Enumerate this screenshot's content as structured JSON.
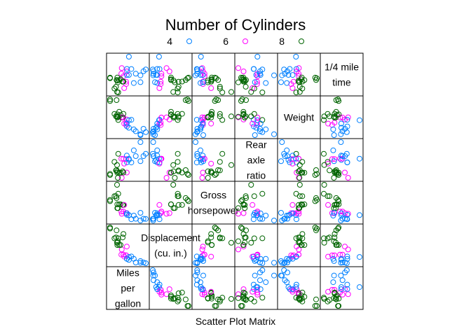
{
  "chart_data": {
    "type": "scatter",
    "title": "Number of Cylinders",
    "xlabel": "Scatter Plot Matrix",
    "legend": {
      "placement": "top",
      "entries": [
        {
          "name": "4",
          "color": "#0080ff"
        },
        {
          "name": "6",
          "color": "#ff00ff"
        },
        {
          "name": "8",
          "color": "#006400"
        }
      ]
    },
    "variables": [
      {
        "key": "mpg",
        "label_lines": [
          "Miles",
          "per",
          "gallon"
        ]
      },
      {
        "key": "disp",
        "label_lines": [
          "Displacement",
          "(cu. in.)"
        ]
      },
      {
        "key": "hp",
        "label_lines": [
          "Gross",
          "horsepower"
        ]
      },
      {
        "key": "drat",
        "label_lines": [
          "Rear",
          "axle",
          "ratio"
        ]
      },
      {
        "key": "wt",
        "label_lines": [
          "Weight"
        ]
      },
      {
        "key": "qsec",
        "label_lines": [
          "1/4 mile",
          "time"
        ]
      }
    ],
    "grid": false,
    "points": [
      {
        "cyl": "6",
        "mpg": 21.0,
        "disp": 160.0,
        "hp": 110,
        "drat": 3.9,
        "wt": 2.62,
        "qsec": 16.46
      },
      {
        "cyl": "6",
        "mpg": 21.0,
        "disp": 160.0,
        "hp": 110,
        "drat": 3.9,
        "wt": 2.875,
        "qsec": 17.02
      },
      {
        "cyl": "4",
        "mpg": 22.8,
        "disp": 108.0,
        "hp": 93,
        "drat": 3.85,
        "wt": 2.32,
        "qsec": 18.61
      },
      {
        "cyl": "6",
        "mpg": 21.4,
        "disp": 258.0,
        "hp": 110,
        "drat": 3.08,
        "wt": 3.215,
        "qsec": 19.44
      },
      {
        "cyl": "8",
        "mpg": 18.7,
        "disp": 360.0,
        "hp": 175,
        "drat": 3.15,
        "wt": 3.44,
        "qsec": 17.02
      },
      {
        "cyl": "6",
        "mpg": 18.1,
        "disp": 225.0,
        "hp": 105,
        "drat": 2.76,
        "wt": 3.46,
        "qsec": 20.22
      },
      {
        "cyl": "8",
        "mpg": 14.3,
        "disp": 360.0,
        "hp": 245,
        "drat": 3.21,
        "wt": 3.57,
        "qsec": 15.84
      },
      {
        "cyl": "4",
        "mpg": 24.4,
        "disp": 146.7,
        "hp": 62,
        "drat": 3.69,
        "wt": 3.19,
        "qsec": 20.0
      },
      {
        "cyl": "4",
        "mpg": 22.8,
        "disp": 140.8,
        "hp": 95,
        "drat": 3.92,
        "wt": 3.15,
        "qsec": 22.9
      },
      {
        "cyl": "6",
        "mpg": 19.2,
        "disp": 167.6,
        "hp": 123,
        "drat": 3.92,
        "wt": 3.44,
        "qsec": 18.3
      },
      {
        "cyl": "6",
        "mpg": 17.8,
        "disp": 167.6,
        "hp": 123,
        "drat": 3.92,
        "wt": 3.44,
        "qsec": 18.9
      },
      {
        "cyl": "8",
        "mpg": 16.4,
        "disp": 275.8,
        "hp": 180,
        "drat": 3.07,
        "wt": 4.07,
        "qsec": 17.4
      },
      {
        "cyl": "8",
        "mpg": 17.3,
        "disp": 275.8,
        "hp": 180,
        "drat": 3.07,
        "wt": 3.73,
        "qsec": 17.6
      },
      {
        "cyl": "8",
        "mpg": 15.2,
        "disp": 275.8,
        "hp": 180,
        "drat": 3.07,
        "wt": 3.78,
        "qsec": 18.0
      },
      {
        "cyl": "8",
        "mpg": 10.4,
        "disp": 472.0,
        "hp": 205,
        "drat": 2.93,
        "wt": 5.25,
        "qsec": 17.98
      },
      {
        "cyl": "8",
        "mpg": 10.4,
        "disp": 460.0,
        "hp": 215,
        "drat": 3.0,
        "wt": 5.424,
        "qsec": 17.82
      },
      {
        "cyl": "8",
        "mpg": 14.7,
        "disp": 440.0,
        "hp": 230,
        "drat": 3.23,
        "wt": 5.345,
        "qsec": 17.42
      },
      {
        "cyl": "4",
        "mpg": 32.4,
        "disp": 78.7,
        "hp": 66,
        "drat": 4.08,
        "wt": 2.2,
        "qsec": 19.47
      },
      {
        "cyl": "4",
        "mpg": 30.4,
        "disp": 75.7,
        "hp": 52,
        "drat": 4.93,
        "wt": 1.615,
        "qsec": 18.52
      },
      {
        "cyl": "4",
        "mpg": 33.9,
        "disp": 71.1,
        "hp": 65,
        "drat": 4.22,
        "wt": 1.835,
        "qsec": 19.9
      },
      {
        "cyl": "4",
        "mpg": 21.5,
        "disp": 120.1,
        "hp": 97,
        "drat": 3.7,
        "wt": 2.465,
        "qsec": 20.01
      },
      {
        "cyl": "8",
        "mpg": 15.5,
        "disp": 318.0,
        "hp": 150,
        "drat": 2.76,
        "wt": 3.52,
        "qsec": 16.87
      },
      {
        "cyl": "8",
        "mpg": 15.2,
        "disp": 304.0,
        "hp": 150,
        "drat": 3.15,
        "wt": 3.435,
        "qsec": 17.3
      },
      {
        "cyl": "8",
        "mpg": 13.3,
        "disp": 350.0,
        "hp": 245,
        "drat": 3.73,
        "wt": 3.84,
        "qsec": 15.41
      },
      {
        "cyl": "8",
        "mpg": 19.2,
        "disp": 400.0,
        "hp": 175,
        "drat": 3.08,
        "wt": 3.845,
        "qsec": 17.05
      },
      {
        "cyl": "4",
        "mpg": 27.3,
        "disp": 79.0,
        "hp": 66,
        "drat": 4.08,
        "wt": 1.935,
        "qsec": 18.9
      },
      {
        "cyl": "4",
        "mpg": 26.0,
        "disp": 120.3,
        "hp": 91,
        "drat": 4.43,
        "wt": 2.14,
        "qsec": 16.7
      },
      {
        "cyl": "4",
        "mpg": 30.4,
        "disp": 95.1,
        "hp": 113,
        "drat": 3.77,
        "wt": 1.513,
        "qsec": 16.9
      },
      {
        "cyl": "8",
        "mpg": 15.8,
        "disp": 351.0,
        "hp": 264,
        "drat": 4.22,
        "wt": 3.17,
        "qsec": 14.5
      },
      {
        "cyl": "6",
        "mpg": 19.7,
        "disp": 145.0,
        "hp": 175,
        "drat": 3.62,
        "wt": 2.77,
        "qsec": 15.5
      },
      {
        "cyl": "8",
        "mpg": 15.0,
        "disp": 301.0,
        "hp": 335,
        "drat": 3.54,
        "wt": 3.57,
        "qsec": 14.6
      },
      {
        "cyl": "4",
        "mpg": 21.4,
        "disp": 121.0,
        "hp": 109,
        "drat": 4.11,
        "wt": 2.78,
        "qsec": 18.6
      }
    ]
  }
}
